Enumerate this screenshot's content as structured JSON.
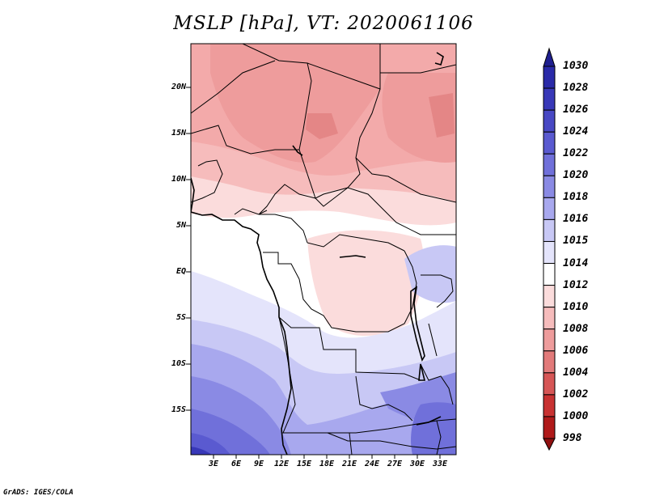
{
  "title": "MSLP [hPa], VT: 2020061106",
  "footer": "GrADS: IGES/COLA",
  "lat_labels": [
    "20N",
    "15N",
    "10N",
    "5N",
    "EQ",
    "5S",
    "10S",
    "15S"
  ],
  "lon_labels": [
    "3E",
    "6E",
    "9E",
    "12E",
    "15E",
    "18E",
    "21E",
    "24E",
    "27E",
    "30E",
    "33E"
  ],
  "colorbar": {
    "levels": [
      "1030",
      "1028",
      "1026",
      "1024",
      "1022",
      "1020",
      "1018",
      "1016",
      "1015",
      "1014",
      "1012",
      "1010",
      "1008",
      "1006",
      "1004",
      "1002",
      "1000",
      "998"
    ],
    "colors": [
      "#1f1f8f",
      "#2a2aa8",
      "#3838b8",
      "#4848c4",
      "#5a5ad0",
      "#7070da",
      "#8a8ae4",
      "#a8a8ee",
      "#c8c8f5",
      "#e4e4fb",
      "#ffffff",
      "#fbdcdc",
      "#f6bcbc",
      "#ee9c9c",
      "#e27a7a",
      "#d65656",
      "#c83232",
      "#b01a1a",
      "#901010"
    ]
  }
}
